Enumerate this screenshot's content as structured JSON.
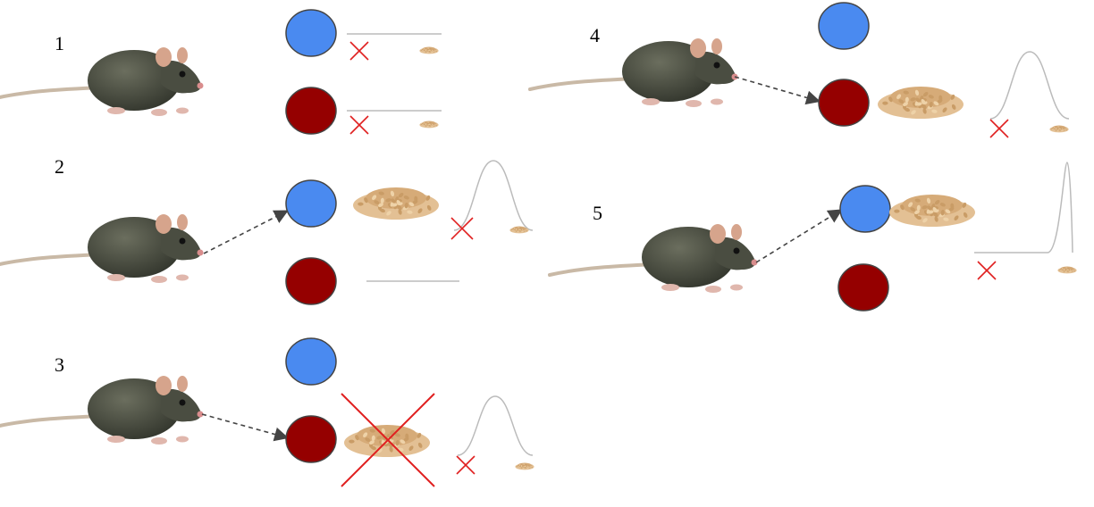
{
  "panels": [
    {
      "number": "1",
      "chosen": "none",
      "blue_outcome": "flat",
      "red_outcome": "flat",
      "red_food_crossed": false
    },
    {
      "number": "2",
      "chosen": "blue",
      "blue_outcome": "bell",
      "red_outcome": "flat",
      "red_food_crossed": false
    },
    {
      "number": "3",
      "chosen": "red",
      "blue_outcome": "none",
      "red_outcome": "bell",
      "red_food_crossed": true
    },
    {
      "number": "4",
      "chosen": "red",
      "blue_outcome": "none",
      "red_outcome": "bell",
      "red_food_crossed": false
    },
    {
      "number": "5",
      "chosen": "blue",
      "blue_outcome": "sharp",
      "red_outcome": "none",
      "red_food_crossed": false
    }
  ],
  "colors": {
    "blue_circle": "#4a8af0",
    "red_circle": "#950000",
    "cross": "#e02020",
    "arrow": "#444444",
    "curve": "#bbbbbb",
    "food": "#d8ad7a",
    "rat_body": "#4e5244"
  },
  "icons": {
    "rat": "rat-icon",
    "food": "food-pellets-icon",
    "cross": "cross-icon"
  }
}
